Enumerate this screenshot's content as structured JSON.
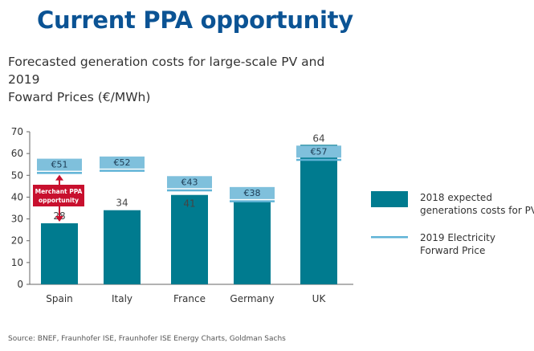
{
  "page": {
    "title": "Current PPA opportunity",
    "subtitle_line1": "Forecasted generation costs for large-scale PV and 2019",
    "subtitle_line2": "Foward Prices (€/MWh)",
    "source": "Source: BNEF, Fraunhofer ISE, Fraunhofer ISE Energy Charts, Goldman Sachs"
  },
  "colors": {
    "title": "#0b5394",
    "bar": "#007b8f",
    "forward_price_box": "#7fc0dc",
    "forward_price_line": "#5fb3d6",
    "annotation": "#c8102e"
  },
  "chart_data": {
    "type": "bar",
    "title": "Forecasted generation costs for large-scale PV and 2019 Foward Prices (€/MWh)",
    "xlabel": "",
    "ylabel": "€/MWh",
    "ylim": [
      0,
      70
    ],
    "yticks": [
      0,
      10,
      20,
      30,
      40,
      50,
      60,
      70
    ],
    "grid": false,
    "legend_position": "right",
    "categories": [
      "Spain",
      "Italy",
      "France",
      "Germany",
      "UK"
    ],
    "series": [
      {
        "name": "2018 expected generations costs for PV",
        "kind": "bar",
        "values": [
          28,
          34,
          41,
          38,
          64
        ],
        "labels": [
          "28",
          "34",
          "41",
          "",
          "64"
        ]
      },
      {
        "name": "2019 Electricity Forward Price",
        "kind": "line-marker",
        "values": [
          51,
          52,
          43,
          38,
          57
        ],
        "labels": [
          "€51",
          "€52",
          "€43",
          "€38",
          "€57"
        ]
      }
    ],
    "annotations": [
      {
        "text_line1": "Merchant PPA",
        "text_line2": "opportunity",
        "category": "Spain",
        "from": 28,
        "to": 51
      }
    ],
    "legend": [
      {
        "line1": "2018 expected",
        "line2": "generations costs for PV"
      },
      {
        "line1": "2019 Electricity",
        "line2": "Forward Price"
      }
    ]
  }
}
